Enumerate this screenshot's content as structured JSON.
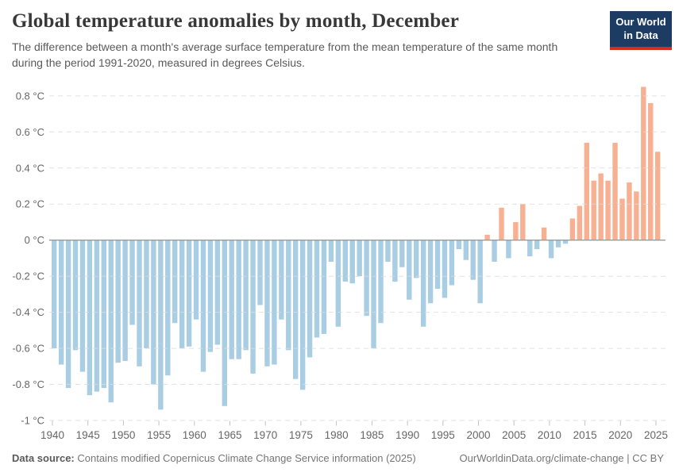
{
  "header": {
    "title": "Global temperature anomalies by month, December",
    "subtitle": "The difference between a month's average surface temperature from the mean temperature of the same month during the period 1991-2020, measured in degrees Celsius."
  },
  "logo": {
    "line1": "Our World",
    "line2": "in Data"
  },
  "footer": {
    "source_label": "Data source:",
    "source_text": " Contains modified Copernicus Climate Change Service information (2025)",
    "credit": "OurWorldinData.org/climate-change | CC BY"
  },
  "chart_data": {
    "type": "bar",
    "title": "Global temperature anomalies by month, December",
    "xlabel": "",
    "ylabel": "degrees Celsius",
    "x": [
      1940,
      1941,
      1942,
      1943,
      1944,
      1945,
      1946,
      1947,
      1948,
      1949,
      1950,
      1951,
      1952,
      1953,
      1954,
      1955,
      1956,
      1957,
      1958,
      1959,
      1960,
      1961,
      1962,
      1963,
      1964,
      1965,
      1966,
      1967,
      1968,
      1969,
      1970,
      1971,
      1972,
      1973,
      1974,
      1975,
      1976,
      1977,
      1978,
      1979,
      1980,
      1981,
      1982,
      1983,
      1984,
      1985,
      1986,
      1987,
      1988,
      1989,
      1990,
      1991,
      1992,
      1993,
      1994,
      1995,
      1996,
      1997,
      1998,
      1999,
      2000,
      2001,
      2002,
      2003,
      2004,
      2005,
      2006,
      2007,
      2008,
      2009,
      2010,
      2011,
      2012,
      2013,
      2014,
      2015,
      2016,
      2017,
      2018,
      2019,
      2020,
      2021,
      2022,
      2023,
      2024,
      2025
    ],
    "values": [
      -0.6,
      -0.69,
      -0.82,
      -0.61,
      -0.73,
      -0.86,
      -0.84,
      -0.82,
      -0.9,
      -0.68,
      -0.67,
      -0.47,
      -0.7,
      -0.6,
      -0.8,
      -0.94,
      -0.75,
      -0.46,
      -0.6,
      -0.59,
      -0.44,
      -0.73,
      -0.62,
      -0.58,
      -0.92,
      -0.66,
      -0.66,
      -0.61,
      -0.74,
      -0.36,
      -0.7,
      -0.69,
      -0.44,
      -0.61,
      -0.77,
      -0.83,
      -0.65,
      -0.54,
      -0.52,
      -0.12,
      -0.48,
      -0.23,
      -0.24,
      -0.2,
      -0.42,
      -0.6,
      -0.46,
      -0.12,
      -0.23,
      -0.15,
      -0.33,
      -0.21,
      -0.48,
      -0.35,
      -0.27,
      -0.32,
      -0.25,
      -0.05,
      -0.11,
      -0.22,
      -0.35,
      0.03,
      -0.12,
      0.18,
      -0.1,
      0.1,
      0.2,
      -0.09,
      -0.05,
      0.07,
      -0.1,
      -0.04,
      -0.02,
      0.12,
      0.19,
      0.54,
      0.33,
      0.37,
      0.33,
      0.54,
      0.23,
      0.32,
      0.27,
      0.85,
      0.76,
      0.49
    ],
    "ylim": [
      -1.0,
      0.9
    ],
    "grid": true,
    "yticks": [
      {
        "value": 0.8,
        "label": "0.8 °C"
      },
      {
        "value": 0.6,
        "label": "0.6 °C"
      },
      {
        "value": 0.4,
        "label": "0.4 °C"
      },
      {
        "value": 0.2,
        "label": "0.2 °C"
      },
      {
        "value": 0,
        "label": "0 °C"
      },
      {
        "value": -0.2,
        "label": "-0.2 °C"
      },
      {
        "value": -0.4,
        "label": "-0.4 °C"
      },
      {
        "value": -0.6,
        "label": "-0.6 °C"
      },
      {
        "value": -0.8,
        "label": "-0.8 °C"
      },
      {
        "value": -1,
        "label": "-1 °C"
      }
    ],
    "xticks": [
      1940,
      1945,
      1950,
      1955,
      1960,
      1965,
      1970,
      1975,
      1980,
      1985,
      1990,
      1995,
      2000,
      2005,
      2010,
      2015,
      2020,
      2025
    ],
    "colors": {
      "positive": "#f7b091",
      "negative": "#a9cee3"
    }
  }
}
